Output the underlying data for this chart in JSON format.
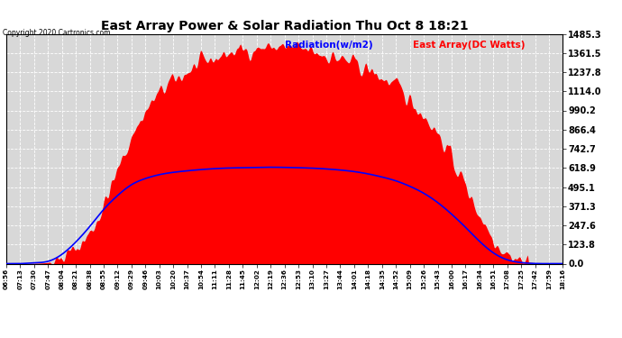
{
  "title": "East Array Power & Solar Radiation Thu Oct 8 18:21",
  "copyright": "Copyright 2020 Cartronics.com",
  "legend_radiation": "Radiation(w/m2)",
  "legend_east": "East Array(DC Watts)",
  "legend_radiation_color": "blue",
  "legend_east_color": "red",
  "y_ticks": [
    0.0,
    123.8,
    247.6,
    371.3,
    495.1,
    618.9,
    742.7,
    866.4,
    990.2,
    1114.0,
    1237.8,
    1361.5,
    1485.3
  ],
  "y_max": 1485.3,
  "background_color": "#ffffff",
  "plot_bg_color": "#d8d8d8",
  "grid_color": "#ffffff",
  "fill_color": "#ff0000",
  "line_color": "#0000ff",
  "x_labels": [
    "06:56",
    "07:13",
    "07:30",
    "07:47",
    "08:04",
    "08:21",
    "08:38",
    "08:55",
    "09:12",
    "09:29",
    "09:46",
    "10:03",
    "10:20",
    "10:37",
    "10:54",
    "11:11",
    "11:28",
    "11:45",
    "12:02",
    "12:19",
    "12:36",
    "12:53",
    "13:10",
    "13:27",
    "13:44",
    "14:01",
    "14:18",
    "14:35",
    "14:52",
    "15:09",
    "15:26",
    "15:43",
    "16:00",
    "16:17",
    "16:34",
    "16:51",
    "17:08",
    "17:25",
    "17:42",
    "17:59",
    "18:16"
  ],
  "radiation_data_coarse": [
    0,
    0,
    2,
    8,
    35,
    100,
    200,
    380,
    600,
    820,
    980,
    1100,
    1180,
    1240,
    1290,
    1330,
    1360,
    1380,
    1390,
    1400,
    1395,
    1385,
    1370,
    1350,
    1320,
    1290,
    1250,
    1200,
    1140,
    1060,
    960,
    840,
    680,
    500,
    320,
    170,
    70,
    20,
    5,
    1,
    0
  ],
  "east_array_data_coarse": [
    0,
    0,
    5,
    15,
    60,
    140,
    240,
    350,
    440,
    510,
    550,
    575,
    590,
    600,
    608,
    614,
    618,
    620,
    622,
    623,
    622,
    620,
    617,
    612,
    605,
    595,
    580,
    560,
    535,
    500,
    455,
    395,
    320,
    235,
    145,
    70,
    25,
    7,
    1,
    0,
    0
  ],
  "noise_seed": 42,
  "noise_amplitude": 60,
  "n_fine": 600
}
